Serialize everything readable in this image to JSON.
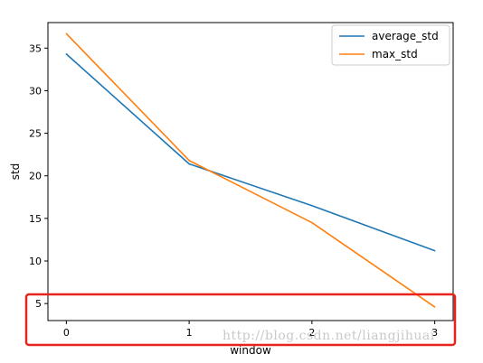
{
  "chart_data": {
    "type": "line",
    "x": [
      0,
      1,
      2,
      3
    ],
    "series": [
      {
        "name": "average_std",
        "values": [
          34.3,
          21.4,
          16.5,
          11.2
        ],
        "color": "#1f77b4"
      },
      {
        "name": "max_std",
        "values": [
          36.7,
          21.8,
          14.5,
          4.6
        ],
        "color": "#ff7f0e"
      }
    ],
    "xlabel": "window",
    "ylabel": "std",
    "xlim": [
      -0.15,
      3.15
    ],
    "ylim": [
      3,
      38
    ],
    "xticks": [
      0,
      1,
      2,
      3
    ],
    "yticks": [
      5,
      10,
      15,
      20,
      25,
      30,
      35
    ],
    "grid": false,
    "legend": "top-right"
  },
  "highlight": {
    "color": "#e8231a"
  },
  "watermark": "http://blog.csdn.net/liangjihuai"
}
